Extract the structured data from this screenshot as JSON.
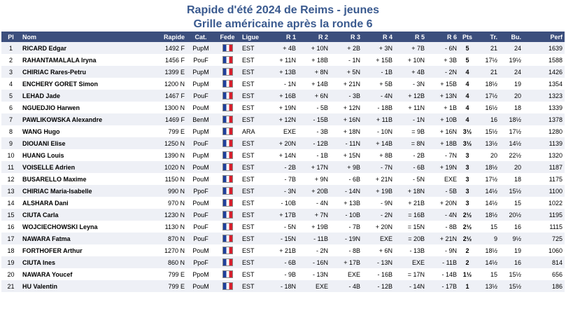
{
  "title": "Rapide d'été 2024 de Reims - jeunes",
  "subtitle": "Grille américaine après la ronde 6",
  "headers": [
    "Pl",
    "Nom",
    "Rapide",
    "Cat.",
    "Fede",
    "Ligue",
    "R 1",
    "R 2",
    "R 3",
    "R 4",
    "R 5",
    "R 6",
    "Pts",
    "Tr.",
    "Bu.",
    "Perf"
  ],
  "flag_icon": "france-flag-icon",
  "rows": [
    {
      "pl": "1",
      "nom": "RICARD Edgar",
      "rapide": "1492 F",
      "cat": "PupM",
      "ligue": "EST",
      "r1": "+ 4B",
      "r2": "+ 10N",
      "r3": "+ 2B",
      "r4": "+ 3N",
      "r5": "+ 7B",
      "r6": "- 6N",
      "pts": "5",
      "tr": "21",
      "bu": "24",
      "perf": "1639"
    },
    {
      "pl": "2",
      "nom": "RAHANTAMALALA Iryna",
      "rapide": "1456 F",
      "cat": "PouF",
      "ligue": "EST",
      "r1": "+ 11N",
      "r2": "+ 18B",
      "r3": "- 1N",
      "r4": "+ 15B",
      "r5": "+ 10N",
      "r6": "+ 3B",
      "pts": "5",
      "tr": "17½",
      "bu": "19½",
      "perf": "1588"
    },
    {
      "pl": "3",
      "nom": "CHIRIAC Rares-Petru",
      "rapide": "1399 E",
      "cat": "PupM",
      "ligue": "EST",
      "r1": "+ 13B",
      "r2": "+ 8N",
      "r3": "+ 5N",
      "r4": "- 1B",
      "r5": "+ 4B",
      "r6": "- 2N",
      "pts": "4",
      "tr": "21",
      "bu": "24",
      "perf": "1426"
    },
    {
      "pl": "4",
      "nom": "ENCHERY GORET Simon",
      "rapide": "1200 N",
      "cat": "PupM",
      "ligue": "EST",
      "r1": "- 1N",
      "r2": "+ 14B",
      "r3": "+ 21N",
      "r4": "+ 5B",
      "r5": "- 3N",
      "r6": "+ 15B",
      "pts": "4",
      "tr": "18½",
      "bu": "19",
      "perf": "1354"
    },
    {
      "pl": "5",
      "nom": "LEHAD Jade",
      "rapide": "1467 F",
      "cat": "PouF",
      "ligue": "EST",
      "r1": "+ 16B",
      "r2": "+ 6N",
      "r3": "- 3B",
      "r4": "- 4N",
      "r5": "+ 12B",
      "r6": "+ 13N",
      "pts": "4",
      "tr": "17½",
      "bu": "20",
      "perf": "1323"
    },
    {
      "pl": "6",
      "nom": "NGUEDJIO Harwen",
      "rapide": "1300 N",
      "cat": "PouM",
      "ligue": "EST",
      "r1": "+ 19N",
      "r2": "- 5B",
      "r3": "+ 12N",
      "r4": "- 18B",
      "r5": "+ 11N",
      "r6": "+ 1B",
      "pts": "4",
      "tr": "16½",
      "bu": "18",
      "perf": "1339"
    },
    {
      "pl": "7",
      "nom": "PAWLIKOWSKA Alexandre",
      "rapide": "1469 F",
      "cat": "BenM",
      "ligue": "EST",
      "r1": "+ 12N",
      "r2": "- 15B",
      "r3": "+ 16N",
      "r4": "+ 11B",
      "r5": "- 1N",
      "r6": "+ 10B",
      "pts": "4",
      "tr": "16",
      "bu": "18½",
      "perf": "1378"
    },
    {
      "pl": "8",
      "nom": "WANG Hugo",
      "rapide": "799 E",
      "cat": "PupM",
      "ligue": "ARA",
      "r1": "EXE",
      "r2": "- 3B",
      "r3": "+ 18N",
      "r4": "- 10N",
      "r5": "= 9B",
      "r6": "+ 16N",
      "pts": "3½",
      "tr": "15½",
      "bu": "17½",
      "perf": "1280"
    },
    {
      "pl": "9",
      "nom": "DIOUANI Elise",
      "rapide": "1250 N",
      "cat": "PouF",
      "ligue": "EST",
      "r1": "+ 20N",
      "r2": "- 12B",
      "r3": "- 11N",
      "r4": "+ 14B",
      "r5": "= 8N",
      "r6": "+ 18B",
      "pts": "3½",
      "tr": "13½",
      "bu": "14½",
      "perf": "1139"
    },
    {
      "pl": "10",
      "nom": "HUANG Louis",
      "rapide": "1390 N",
      "cat": "PupM",
      "ligue": "EST",
      "r1": "+ 14N",
      "r2": "- 1B",
      "r3": "+ 15N",
      "r4": "+ 8B",
      "r5": "- 2B",
      "r6": "- 7N",
      "pts": "3",
      "tr": "20",
      "bu": "22½",
      "perf": "1320"
    },
    {
      "pl": "11",
      "nom": "VOISELLE Adrien",
      "rapide": "1020 N",
      "cat": "PouM",
      "ligue": "EST",
      "r1": "- 2B",
      "r2": "+ 17N",
      "r3": "+ 9B",
      "r4": "- 7N",
      "r5": "- 6B",
      "r6": "+ 19N",
      "pts": "3",
      "tr": "18½",
      "bu": "20",
      "perf": "1187"
    },
    {
      "pl": "12",
      "nom": "BUSARELLO Maxime",
      "rapide": "1150 N",
      "cat": "PouM",
      "ligue": "EST",
      "r1": "- 7B",
      "r2": "+ 9N",
      "r3": "- 6B",
      "r4": "+ 21N",
      "r5": "- 5N",
      "r6": "EXE",
      "pts": "3",
      "tr": "17½",
      "bu": "18",
      "perf": "1175"
    },
    {
      "pl": "13",
      "nom": "CHIRIAC Maria-Isabelle",
      "rapide": "990 N",
      "cat": "PpoF",
      "ligue": "EST",
      "r1": "- 3N",
      "r2": "+ 20B",
      "r3": "- 14N",
      "r4": "+ 19B",
      "r5": "+ 18N",
      "r6": "- 5B",
      "pts": "3",
      "tr": "14½",
      "bu": "15½",
      "perf": "1100"
    },
    {
      "pl": "14",
      "nom": "ALSHARA Dani",
      "rapide": "970 N",
      "cat": "PouM",
      "ligue": "EST",
      "r1": "- 10B",
      "r2": "- 4N",
      "r3": "+ 13B",
      "r4": "- 9N",
      "r5": "+ 21B",
      "r6": "+ 20N",
      "pts": "3",
      "tr": "14½",
      "bu": "15",
      "perf": "1022"
    },
    {
      "pl": "15",
      "nom": "CIUTA Carla",
      "rapide": "1230 N",
      "cat": "PouF",
      "ligue": "EST",
      "r1": "+ 17B",
      "r2": "+ 7N",
      "r3": "- 10B",
      "r4": "- 2N",
      "r5": "= 16B",
      "r6": "- 4N",
      "pts": "2½",
      "tr": "18½",
      "bu": "20½",
      "perf": "1195"
    },
    {
      "pl": "16",
      "nom": "WOJCIECHOWSKI Leyna",
      "rapide": "1130 N",
      "cat": "PouF",
      "ligue": "EST",
      "r1": "- 5N",
      "r2": "+ 19B",
      "r3": "- 7B",
      "r4": "+ 20N",
      "r5": "= 15N",
      "r6": "- 8B",
      "pts": "2½",
      "tr": "15",
      "bu": "16",
      "perf": "1115"
    },
    {
      "pl": "17",
      "nom": "NAWARA Fatma",
      "rapide": "870 N",
      "cat": "PouF",
      "ligue": "EST",
      "r1": "- 15N",
      "r2": "- 11B",
      "r3": "- 19N",
      "r4": "EXE",
      "r5": "= 20B",
      "r6": "+ 21N",
      "pts": "2½",
      "tr": "9",
      "bu": "9½",
      "perf": "725"
    },
    {
      "pl": "18",
      "nom": "FORTHOFER Arthur",
      "rapide": "1270 N",
      "cat": "PouM",
      "ligue": "EST",
      "r1": "+ 21B",
      "r2": "- 2N",
      "r3": "- 8B",
      "r4": "+ 6N",
      "r5": "- 13B",
      "r6": "- 9N",
      "pts": "2",
      "tr": "18½",
      "bu": "19",
      "perf": "1060"
    },
    {
      "pl": "19",
      "nom": "CIUTA Ines",
      "rapide": "860 N",
      "cat": "PpoF",
      "ligue": "EST",
      "r1": "- 6B",
      "r2": "- 16N",
      "r3": "+ 17B",
      "r4": "- 13N",
      "r5": "EXE",
      "r6": "- 11B",
      "pts": "2",
      "tr": "14½",
      "bu": "16",
      "perf": "814"
    },
    {
      "pl": "20",
      "nom": "NAWARA Youcef",
      "rapide": "799 E",
      "cat": "PpoM",
      "ligue": "EST",
      "r1": "- 9B",
      "r2": "- 13N",
      "r3": "EXE",
      "r4": "- 16B",
      "r5": "= 17N",
      "r6": "- 14B",
      "pts": "1½",
      "tr": "15",
      "bu": "15½",
      "perf": "656"
    },
    {
      "pl": "21",
      "nom": "HU Valentin",
      "rapide": "799 E",
      "cat": "PouM",
      "ligue": "EST",
      "r1": "- 18N",
      "r2": "EXE",
      "r3": "- 4B",
      "r4": "- 12B",
      "r5": "- 14N",
      "r6": "- 17B",
      "pts": "1",
      "tr": "13½",
      "bu": "15½",
      "perf": "186"
    }
  ]
}
